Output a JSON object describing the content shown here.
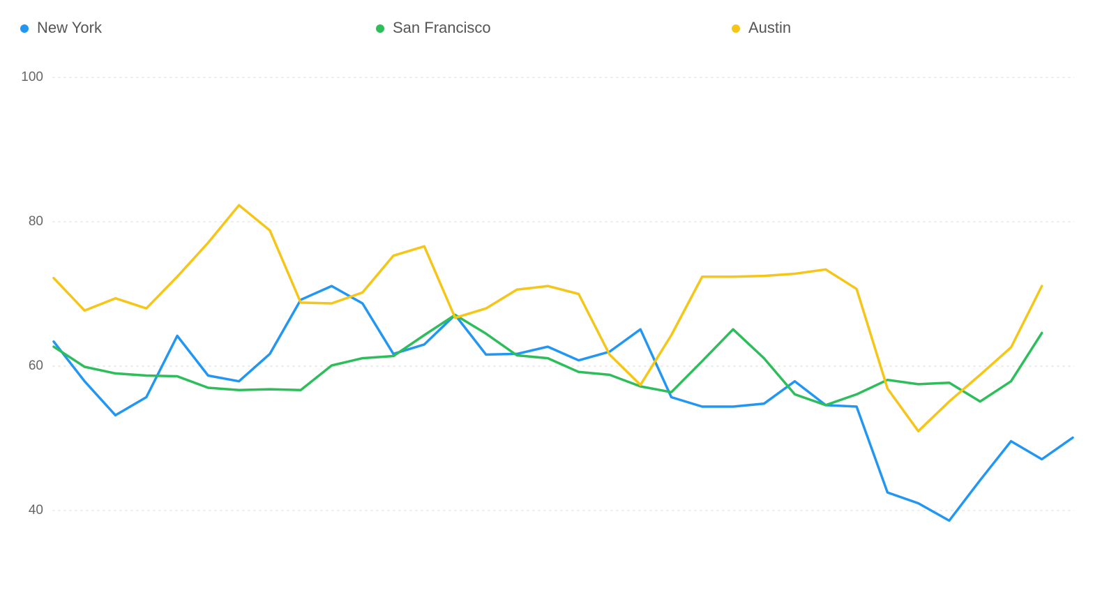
{
  "chart_data": {
    "type": "line",
    "categories": [
      null,
      null,
      null,
      null,
      null,
      null,
      null,
      null,
      null,
      null,
      null,
      null,
      null,
      null,
      null,
      null,
      null,
      null,
      null,
      null,
      null,
      null,
      null,
      null,
      null,
      null,
      null,
      null,
      null,
      null,
      null,
      null,
      null,
      null
    ],
    "series": [
      {
        "name": "New York",
        "color": "#2196f3",
        "values": [
          63.4,
          57.9,
          53.2,
          55.7,
          64.2,
          58.7,
          57.9,
          61.7,
          69.2,
          71.1,
          68.7,
          61.7,
          63.0,
          67.1,
          61.6,
          61.7,
          62.7,
          60.8,
          62.0,
          65.1,
          55.7,
          54.4,
          54.4,
          54.8,
          57.9,
          54.6,
          54.4,
          42.5,
          41.0,
          38.6,
          44.2,
          49.6,
          47.1,
          50.1
        ]
      },
      {
        "name": "San Francisco",
        "color": "#2dbd5a",
        "values": [
          62.7,
          59.9,
          59.0,
          58.7,
          58.6,
          57.0,
          56.7,
          56.8,
          56.7,
          60.1,
          61.1,
          61.4,
          64.3,
          67.1,
          64.5,
          61.5,
          61.1,
          59.2,
          58.8,
          57.2,
          56.4,
          60.7,
          65.1,
          61.1,
          56.1,
          54.6,
          56.1,
          58.1,
          57.5,
          57.7,
          55.1,
          57.9,
          64.6,
          null
        ]
      },
      {
        "name": "Austin",
        "color": "#f5c518",
        "values": [
          72.2,
          67.7,
          69.4,
          68.0,
          72.4,
          77.1,
          82.3,
          78.8,
          68.8,
          68.7,
          70.2,
          75.3,
          76.6,
          66.7,
          68.0,
          70.6,
          71.1,
          70.0,
          61.6,
          57.4,
          64.3,
          72.4,
          72.4,
          72.5,
          72.8,
          73.4,
          70.7,
          56.9,
          51.0,
          55.1,
          58.8,
          62.6,
          71.1,
          null
        ]
      }
    ],
    "ylim": [
      34,
      100
    ],
    "yticks": [
      40,
      60,
      80,
      100
    ],
    "grid": true,
    "legend": "top"
  }
}
